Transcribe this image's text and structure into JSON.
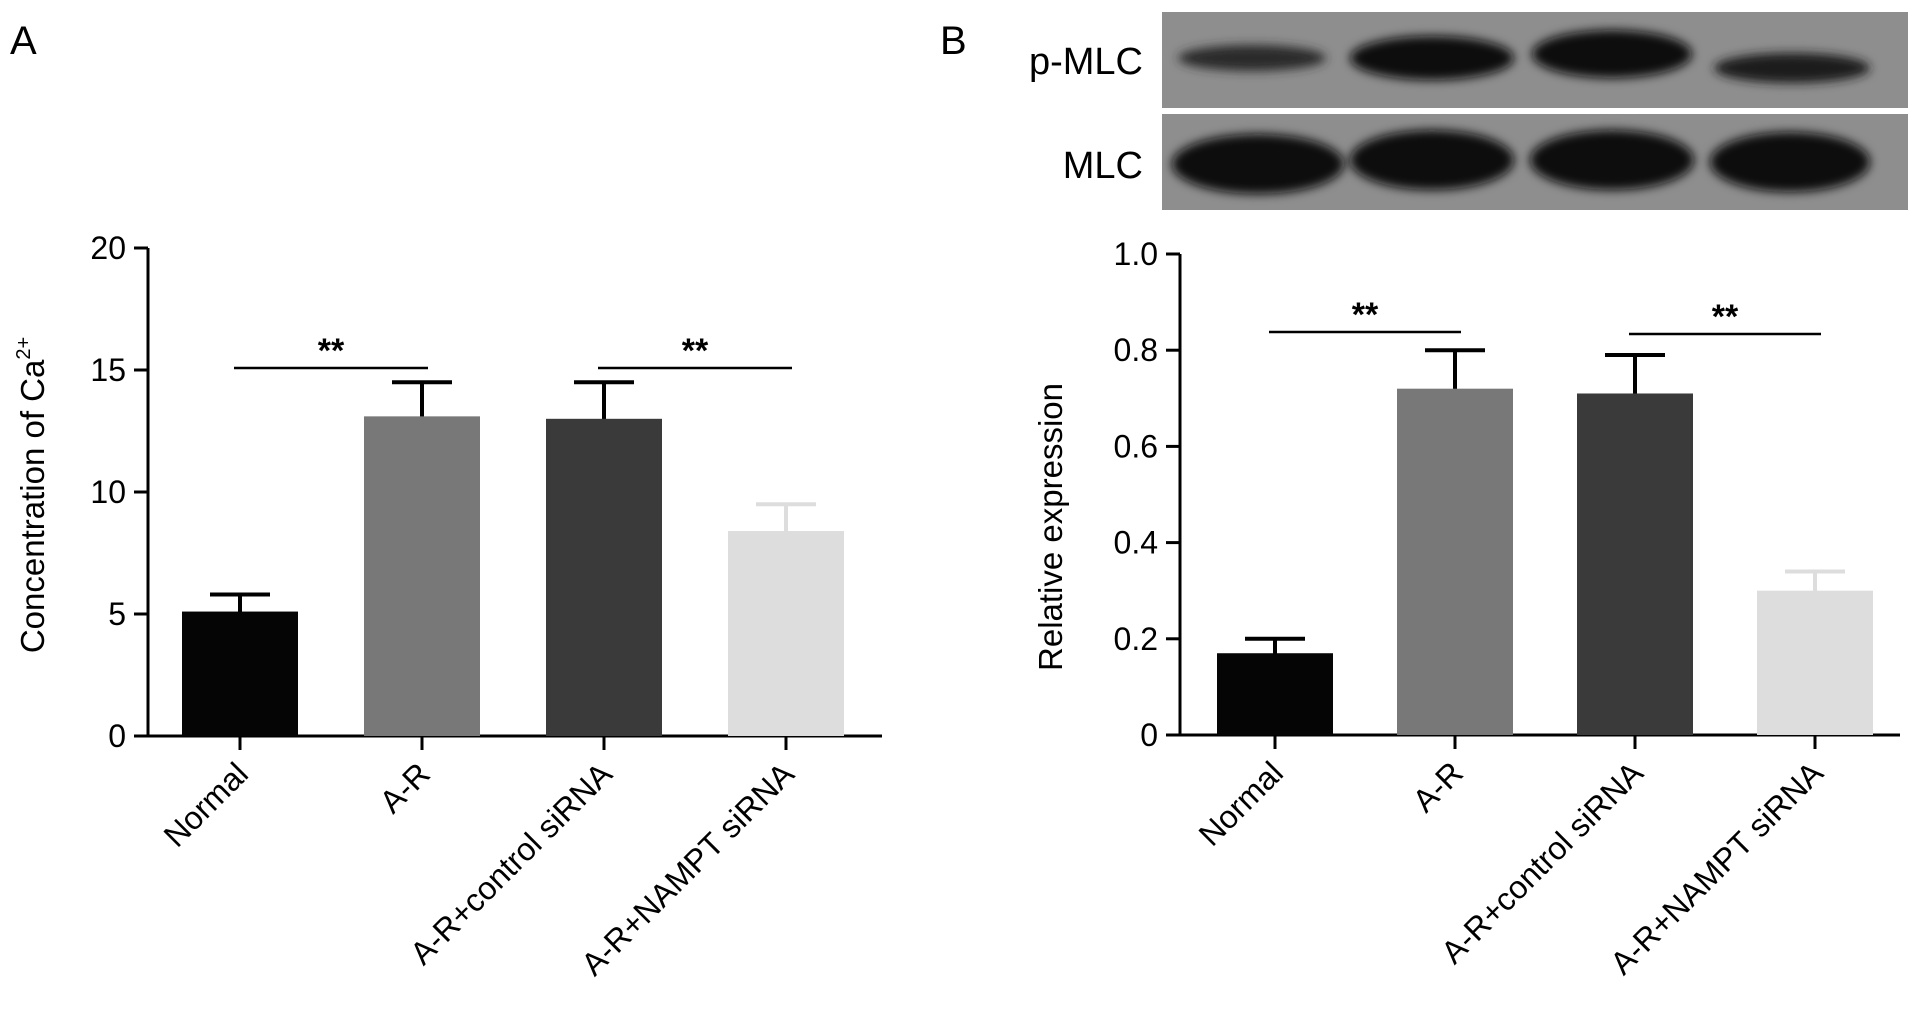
{
  "panels": [
    {
      "letter": "A"
    },
    {
      "letter": "B",
      "blot_labels": [
        "p-MLC",
        "MLC"
      ]
    }
  ],
  "chart_data": [
    {
      "type": "bar",
      "categories": [
        "Normal",
        "A-R",
        "A-R+control siRNA",
        "A-R+NAMPT siRNA"
      ],
      "values": [
        5.1,
        13.1,
        13.0,
        8.4
      ],
      "errors": [
        0.7,
        1.4,
        1.5,
        1.1
      ],
      "ylabel": "Concentration of Ca",
      "ylabel_sup": "2+",
      "ylim": [
        0,
        20
      ],
      "yticks": [
        "0",
        "5",
        "10",
        "15",
        "20"
      ],
      "bar_colors": [
        "#050505",
        "#787878",
        "#3a3a3a",
        "#dddddd"
      ],
      "significance": [
        {
          "from": "Normal",
          "to": "A-R",
          "label": "**"
        },
        {
          "from": "A-R+control siRNA",
          "to": "A-R+NAMPT siRNA",
          "label": "**"
        }
      ]
    },
    {
      "type": "bar",
      "categories": [
        "Normal",
        "A-R",
        "A-R+control siRNA",
        "A-R+NAMPT siRNA"
      ],
      "values": [
        0.17,
        0.72,
        0.71,
        0.3
      ],
      "errors": [
        0.03,
        0.08,
        0.08,
        0.04
      ],
      "ylabel": "Relative expression",
      "ylim": [
        0,
        1.0
      ],
      "yticks": [
        "0",
        "0.2",
        "0.4",
        "0.6",
        "0.8",
        "1.0"
      ],
      "bar_colors": [
        "#050505",
        "#787878",
        "#3a3a3a",
        "#dddddd"
      ],
      "significance": [
        {
          "from": "Normal",
          "to": "A-R",
          "label": "**"
        },
        {
          "from": "A-R+control siRNA",
          "to": "A-R+NAMPT siRNA",
          "label": "**"
        }
      ]
    }
  ]
}
